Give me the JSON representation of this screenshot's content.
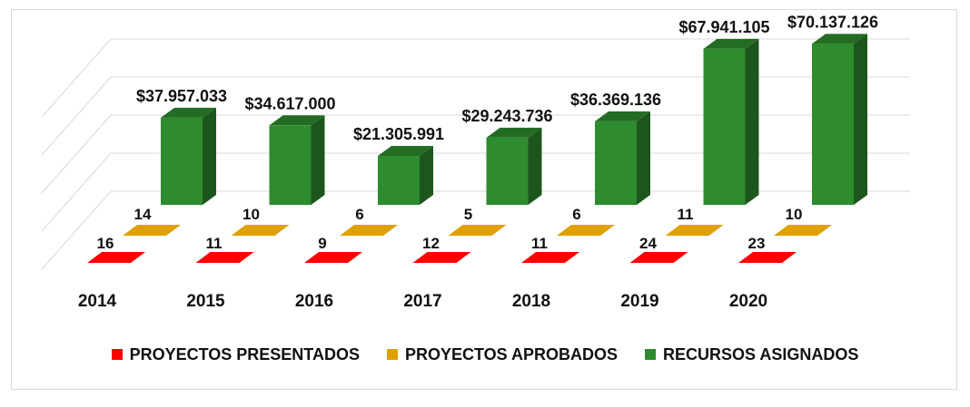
{
  "chart_data": {
    "type": "bar",
    "categories": [
      "2014",
      "2015",
      "2016",
      "2017",
      "2018",
      "2019",
      "2020"
    ],
    "series": [
      {
        "name": "PROYECTOS PRESENTADOS",
        "color": "#ff0000",
        "values": [
          16,
          11,
          9,
          12,
          11,
          24,
          23
        ],
        "labels": [
          "16",
          "11",
          "9",
          "12",
          "11",
          "24",
          "23"
        ]
      },
      {
        "name": "PROYECTOS APROBADOS",
        "color": "#e0a000",
        "values": [
          14,
          10,
          6,
          5,
          6,
          11,
          10
        ],
        "labels": [
          "14",
          "10",
          "6",
          "5",
          "6",
          "11",
          "10"
        ]
      },
      {
        "name": "RECURSOS ASIGNADOS",
        "color": "#2e8b2e",
        "values": [
          37957033,
          34617000,
          21305991,
          29243736,
          36369136,
          67941105,
          70137126
        ],
        "labels": [
          "$37.957.033",
          "$34.617.000",
          "$21.305.991",
          "$29.243.736",
          "$36.369.136",
          "$67.941.105",
          "$70.137.126"
        ]
      }
    ],
    "legend_position": "bottom",
    "grid": true,
    "style": "3d-column"
  }
}
